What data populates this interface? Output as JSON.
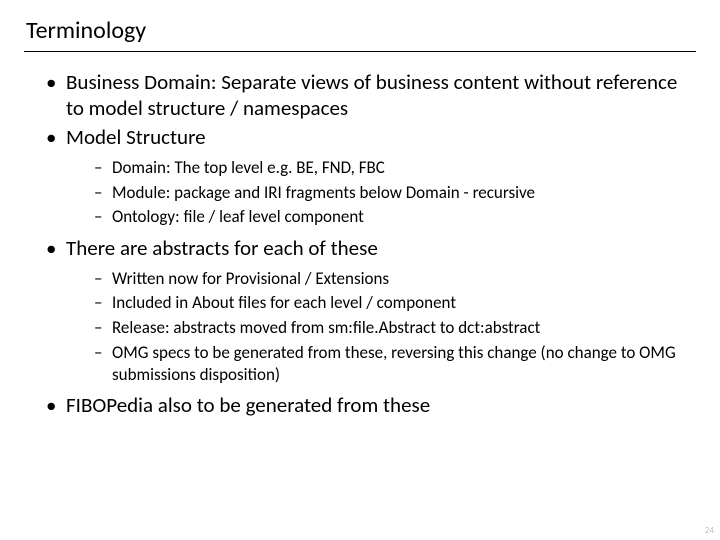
{
  "title": "Terminology",
  "page_number": "24",
  "colors": {
    "background": "#ffffff",
    "text": "#000000",
    "rule": "#000000",
    "pagenum": "#bfbfbf"
  },
  "typography": {
    "title_fontsize_pt": 24,
    "level1_fontsize_pt": 21,
    "level2_fontsize_pt": 17,
    "font_family": "Calibri"
  },
  "bullets": [
    {
      "text": "Business Domain: Separate views of business content without reference to model structure / namespaces",
      "children": []
    },
    {
      "text": "Model Structure",
      "children": [
        {
          "text": "Domain: The top level e.g. BE, FND, FBC"
        },
        {
          "text": "Module: package and IRI fragments below Domain - recursive"
        },
        {
          "text": "Ontology: file / leaf level component"
        }
      ]
    },
    {
      "text": "There are abstracts for each of these",
      "children": [
        {
          "text": "Written now for Provisional / Extensions"
        },
        {
          "text": "Included in About files for each level / component"
        },
        {
          "text": "Release: abstracts moved from sm:file.Abstract to dct:abstract"
        },
        {
          "text": "OMG specs to be generated from these, reversing this change (no change to OMG submissions disposition)"
        }
      ]
    },
    {
      "text": "FIBOPedia also to be generated from these",
      "children": []
    }
  ]
}
